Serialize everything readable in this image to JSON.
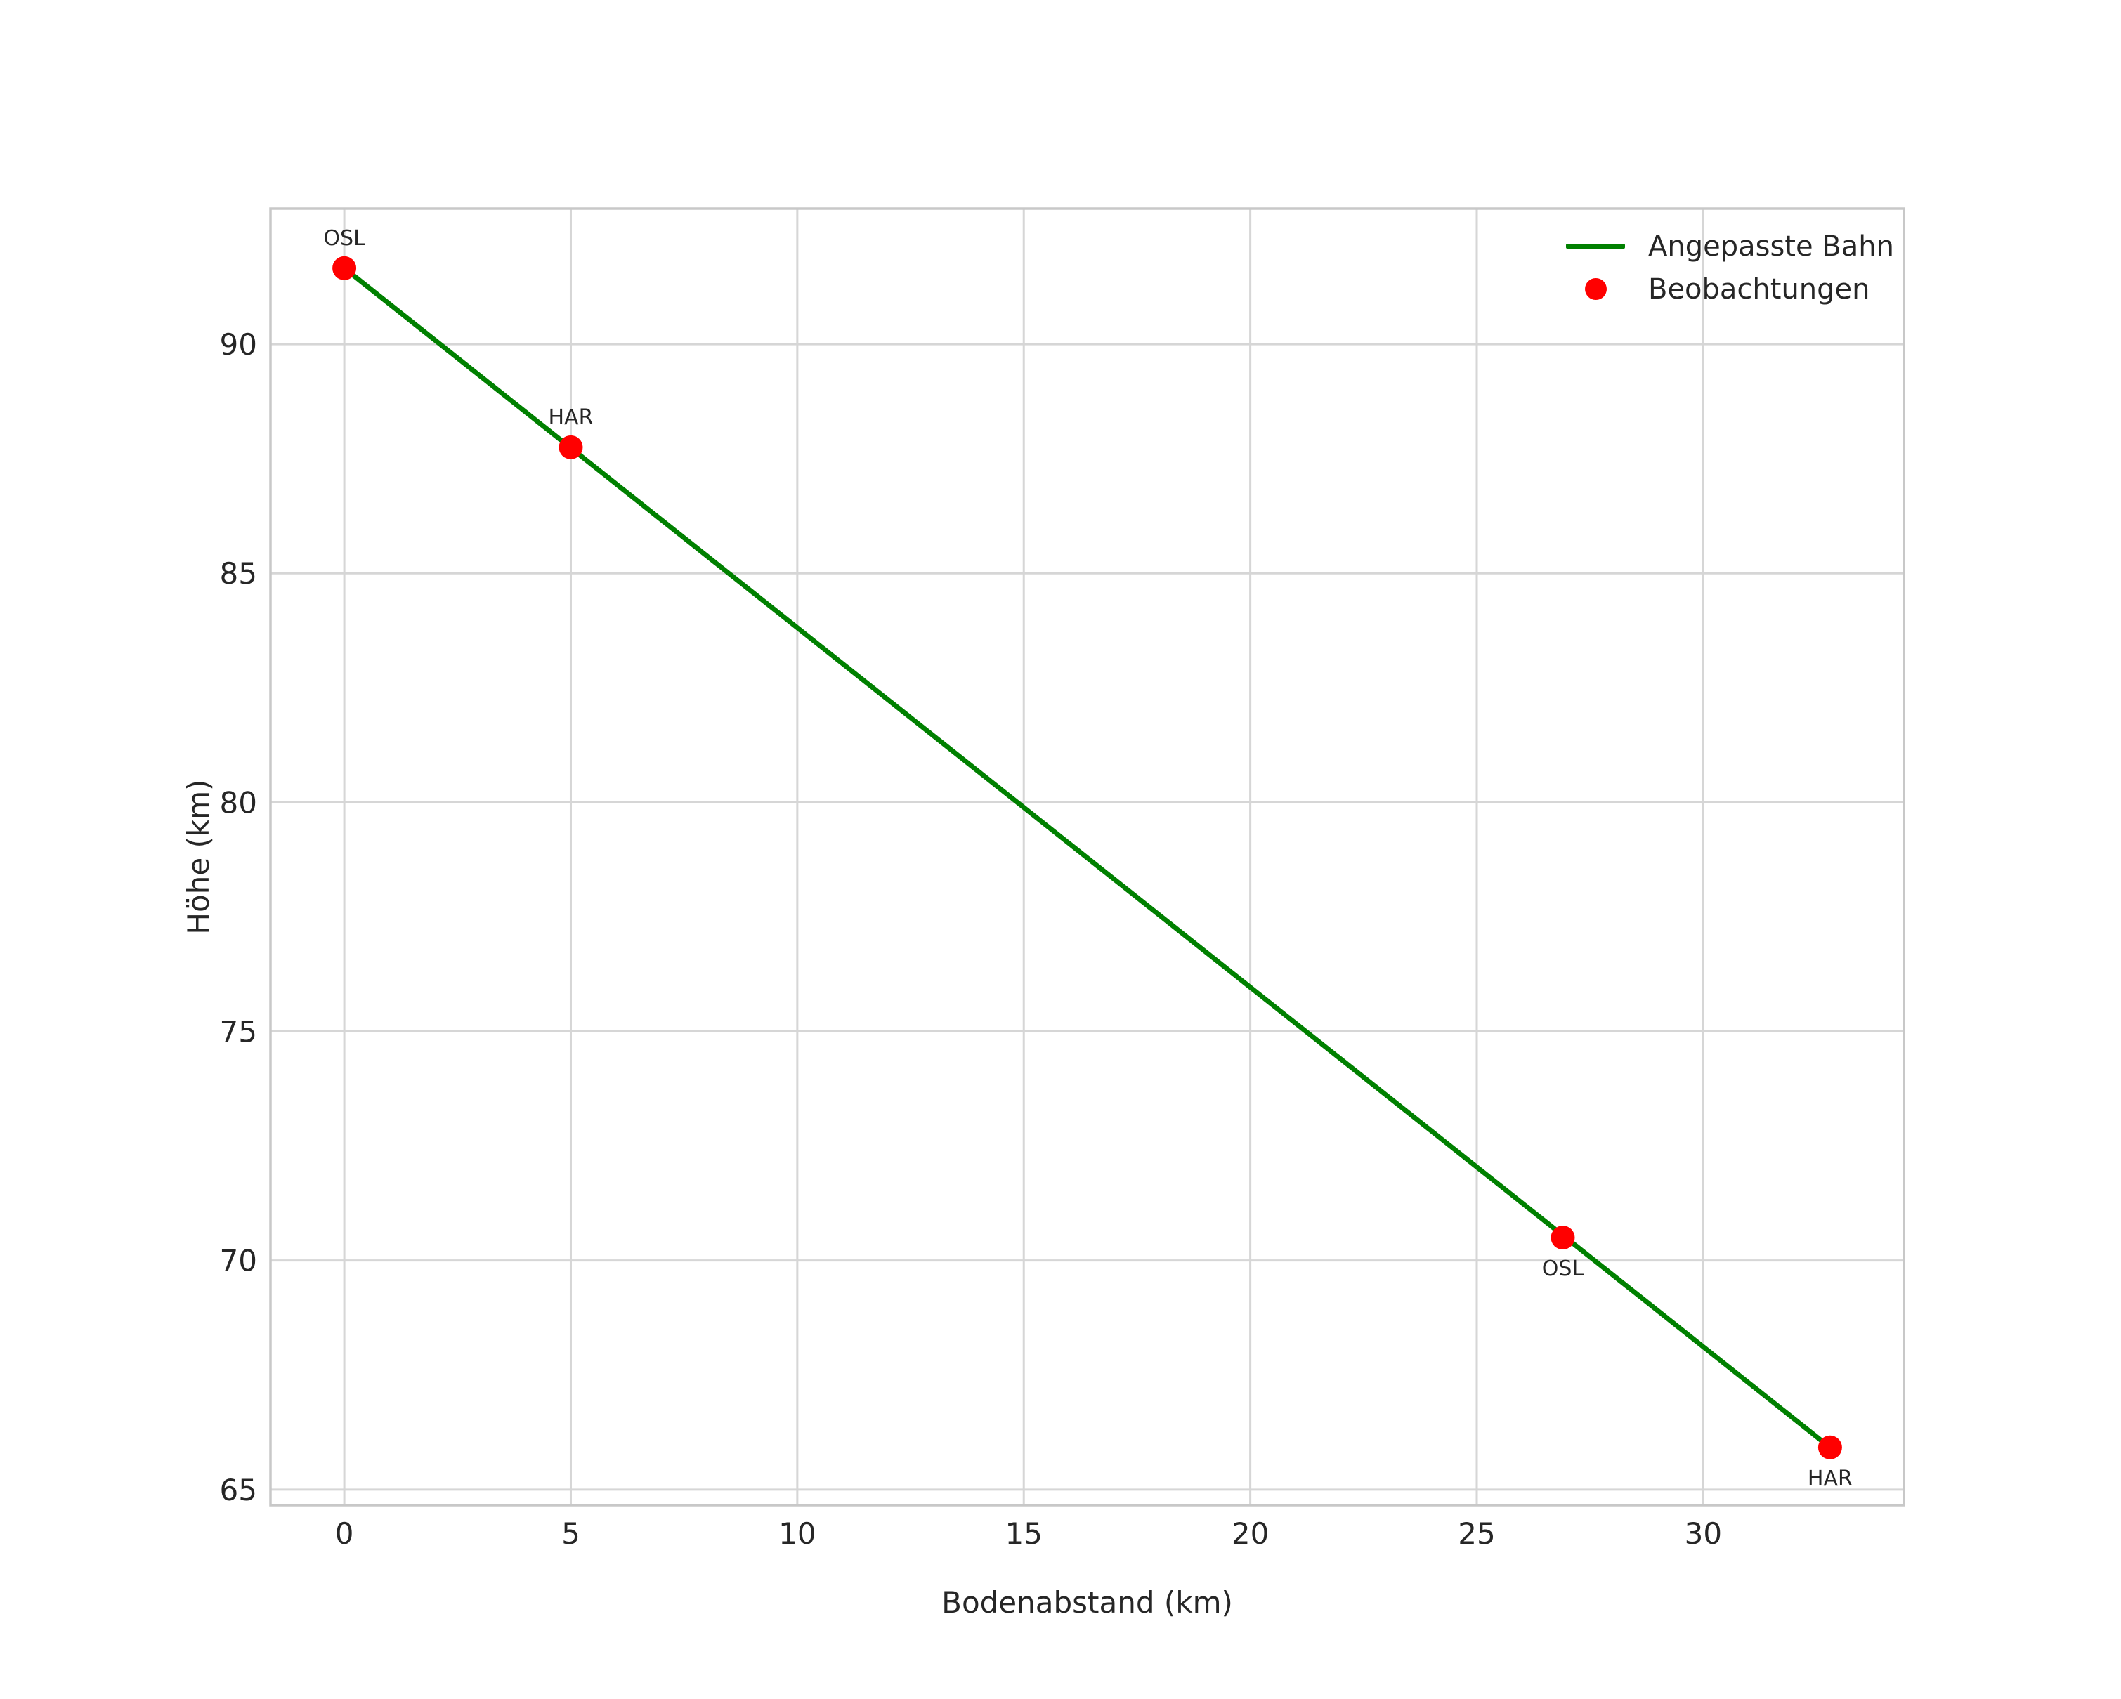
{
  "figure": {
    "background": "#ffffff"
  },
  "chart_data": {
    "type": "line+scatter",
    "title": "",
    "xlabel": "Bodenabstand (km)",
    "ylabel": "Höhe (km)",
    "xlim": [
      -1.63,
      34.43
    ],
    "ylim": [
      64.66,
      92.96
    ],
    "xticks": [
      0,
      5,
      10,
      15,
      20,
      25,
      30
    ],
    "yticks": [
      65,
      70,
      75,
      80,
      85,
      90
    ],
    "grid": true,
    "legend_position": "upper right",
    "series": [
      {
        "name": "Angepasste Bahn",
        "type": "line",
        "color": "#008000",
        "linewidth": 7,
        "x": [
          0.0,
          32.8
        ],
        "y": [
          91.66,
          65.92
        ]
      },
      {
        "name": "Beobachtungen",
        "type": "scatter",
        "color": "#ff0000",
        "marker_radius": 17,
        "points": [
          {
            "x": 0.0,
            "y": 91.66,
            "label": "OSL",
            "label_position": "above"
          },
          {
            "x": 5.0,
            "y": 87.75,
            "label": "HAR",
            "label_position": "above"
          },
          {
            "x": 26.9,
            "y": 70.5,
            "label": "OSL",
            "label_position": "below"
          },
          {
            "x": 32.8,
            "y": 65.92,
            "label": "HAR",
            "label_position": "below"
          }
        ]
      }
    ],
    "legend": {
      "entries": [
        {
          "label": "Angepasste Bahn",
          "swatch": "line",
          "color": "#008000"
        },
        {
          "label": "Beobachtungen",
          "swatch": "dot",
          "color": "#ff0000"
        }
      ]
    },
    "colors": {
      "background": "#ffffff",
      "grid": "#d6d6d6",
      "spine": "#c8c8c8",
      "text": "#262626"
    }
  }
}
